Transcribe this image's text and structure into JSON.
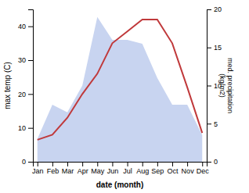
{
  "chart_data": {
    "type": "line",
    "categories": [
      "Jan",
      "Feb",
      "Mar",
      "Apr",
      "May",
      "Jun",
      "Jul",
      "Aug",
      "Sep",
      "Oct",
      "Nov",
      "Dec"
    ],
    "series": [
      {
        "type": "area",
        "axis": "y2",
        "color": "#c8d4f0",
        "values": [
          3.0,
          7.5,
          6.5,
          10.0,
          19.0,
          16.0,
          16.0,
          15.5,
          11.0,
          7.5,
          7.5,
          3.5
        ]
      },
      {
        "type": "line",
        "color": "#c0393b",
        "values": [
          6.5,
          8.0,
          13.0,
          20.0,
          26.0,
          35.0,
          38.5,
          42.0,
          42.0,
          35.0,
          22.0,
          8.5
        ]
      }
    ],
    "ylim": [
      0,
      45
    ],
    "yticks": [
      0,
      10,
      20,
      30,
      40
    ],
    "y2lim": [
      0,
      20
    ],
    "y2ticks": [
      0,
      5,
      10,
      15,
      20
    ],
    "xlabel": "date (month)",
    "ylabel": "max temp (C)",
    "y2label": "med. precipitation\n(kg/m2)"
  }
}
